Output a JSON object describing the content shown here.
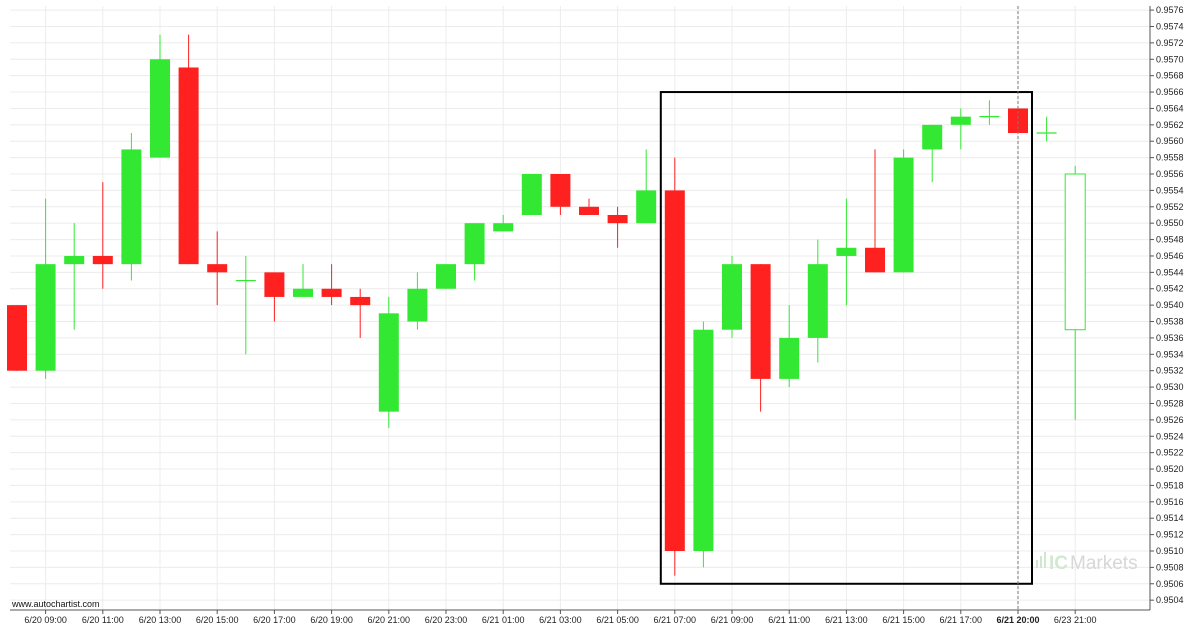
{
  "chart_data": {
    "type": "candlestick",
    "title": "",
    "xlabel": "",
    "ylabel": "",
    "grid": true,
    "ylim": [
      0.9503,
      0.9577
    ],
    "y_ticks": [
      "0.9504",
      "0.9506",
      "0.9508",
      "0.9510",
      "0.9512",
      "0.9514",
      "0.9516",
      "0.9518",
      "0.9520",
      "0.9522",
      "0.9524",
      "0.9526",
      "0.9528",
      "0.9530",
      "0.9532",
      "0.9534",
      "0.9536",
      "0.9538",
      "0.9540",
      "0.9542",
      "0.9544",
      "0.9546",
      "0.9548",
      "0.9550",
      "0.9552",
      "0.9554",
      "0.9556",
      "0.9558",
      "0.9560",
      "0.9562",
      "0.9564",
      "0.9566",
      "0.9568",
      "0.9570",
      "0.9572",
      "0.9574",
      "0.9576"
    ],
    "x_tick_labels": [
      {
        "label": "6/20 09:00",
        "index": 1
      },
      {
        "label": "6/20 11:00",
        "index": 3
      },
      {
        "label": "6/20 13:00",
        "index": 5
      },
      {
        "label": "6/20 15:00",
        "index": 7
      },
      {
        "label": "6/20 17:00",
        "index": 9
      },
      {
        "label": "6/20 19:00",
        "index": 11
      },
      {
        "label": "6/20 21:00",
        "index": 13
      },
      {
        "label": "6/20 23:00",
        "index": 15
      },
      {
        "label": "6/21 01:00",
        "index": 17
      },
      {
        "label": "6/21 03:00",
        "index": 19
      },
      {
        "label": "6/21 05:00",
        "index": 21
      },
      {
        "label": "6/21 07:00",
        "index": 23
      },
      {
        "label": "6/21 09:00",
        "index": 25
      },
      {
        "label": "6/21 11:00",
        "index": 27
      },
      {
        "label": "6/21 13:00",
        "index": 29
      },
      {
        "label": "6/21 15:00",
        "index": 31
      },
      {
        "label": "6/21 17:00",
        "index": 33
      },
      {
        "label": "6/21 20:00",
        "index": 35,
        "bold": true
      },
      {
        "label": "6/23 21:00",
        "index": 37
      }
    ],
    "candles": [
      {
        "o": 0.954,
        "h": 0.954,
        "l": 0.9532,
        "c": 0.9532
      },
      {
        "o": 0.9532,
        "h": 0.9553,
        "l": 0.9531,
        "c": 0.9545
      },
      {
        "o": 0.9545,
        "h": 0.955,
        "l": 0.9537,
        "c": 0.9546
      },
      {
        "o": 0.9546,
        "h": 0.9555,
        "l": 0.9542,
        "c": 0.9545
      },
      {
        "o": 0.9545,
        "h": 0.9561,
        "l": 0.9543,
        "c": 0.9559
      },
      {
        "o": 0.9558,
        "h": 0.9573,
        "l": 0.9558,
        "c": 0.957
      },
      {
        "o": 0.9569,
        "h": 0.9573,
        "l": 0.9545,
        "c": 0.9545
      },
      {
        "o": 0.9545,
        "h": 0.9549,
        "l": 0.954,
        "c": 0.9544
      },
      {
        "o": 0.9543,
        "h": 0.9546,
        "l": 0.9534,
        "c": 0.9543
      },
      {
        "o": 0.9544,
        "h": 0.9544,
        "l": 0.9538,
        "c": 0.9541
      },
      {
        "o": 0.9541,
        "h": 0.9545,
        "l": 0.9541,
        "c": 0.9542
      },
      {
        "o": 0.9542,
        "h": 0.9545,
        "l": 0.954,
        "c": 0.9541
      },
      {
        "o": 0.9541,
        "h": 0.9542,
        "l": 0.9536,
        "c": 0.954
      },
      {
        "o": 0.9527,
        "h": 0.9541,
        "l": 0.9525,
        "c": 0.9539
      },
      {
        "o": 0.9538,
        "h": 0.9544,
        "l": 0.9537,
        "c": 0.9542
      },
      {
        "o": 0.9542,
        "h": 0.9545,
        "l": 0.9542,
        "c": 0.9545
      },
      {
        "o": 0.9545,
        "h": 0.955,
        "l": 0.9543,
        "c": 0.955
      },
      {
        "o": 0.9549,
        "h": 0.9551,
        "l": 0.9549,
        "c": 0.955
      },
      {
        "o": 0.9551,
        "h": 0.9556,
        "l": 0.9551,
        "c": 0.9556
      },
      {
        "o": 0.9556,
        "h": 0.9556,
        "l": 0.9551,
        "c": 0.9552
      },
      {
        "o": 0.9552,
        "h": 0.9553,
        "l": 0.9551,
        "c": 0.9551
      },
      {
        "o": 0.9551,
        "h": 0.9552,
        "l": 0.9547,
        "c": 0.955
      },
      {
        "o": 0.955,
        "h": 0.9559,
        "l": 0.955,
        "c": 0.9554
      },
      {
        "o": 0.9554,
        "h": 0.9558,
        "l": 0.9507,
        "c": 0.951
      },
      {
        "o": 0.951,
        "h": 0.9538,
        "l": 0.9508,
        "c": 0.9537
      },
      {
        "o": 0.9537,
        "h": 0.9546,
        "l": 0.9536,
        "c": 0.9545
      },
      {
        "o": 0.9545,
        "h": 0.9545,
        "l": 0.9527,
        "c": 0.9531
      },
      {
        "o": 0.9531,
        "h": 0.954,
        "l": 0.953,
        "c": 0.9536
      },
      {
        "o": 0.9536,
        "h": 0.9548,
        "l": 0.9533,
        "c": 0.9545
      },
      {
        "o": 0.9546,
        "h": 0.9553,
        "l": 0.954,
        "c": 0.9547
      },
      {
        "o": 0.9547,
        "h": 0.9559,
        "l": 0.9544,
        "c": 0.9544
      },
      {
        "o": 0.9544,
        "h": 0.9559,
        "l": 0.9544,
        "c": 0.9558
      },
      {
        "o": 0.9559,
        "h": 0.9562,
        "l": 0.9555,
        "c": 0.9562
      },
      {
        "o": 0.9562,
        "h": 0.9564,
        "l": 0.9559,
        "c": 0.9563
      },
      {
        "o": 0.9563,
        "h": 0.9565,
        "l": 0.9562,
        "c": 0.9563
      },
      {
        "o": 0.9564,
        "h": 0.9564,
        "l": 0.9561,
        "c": 0.9561
      },
      {
        "o": 0.9561,
        "h": 0.9563,
        "l": 0.956,
        "c": 0.9561
      },
      {
        "o": 0.9537,
        "h": 0.9557,
        "l": 0.9526,
        "c": 0.9556,
        "style": "outline"
      }
    ],
    "pattern_box": {
      "start_index": 23,
      "end_index": 35,
      "y_top": 0.9566,
      "y_bottom": 0.9506
    },
    "current_marker_index": 35,
    "colors": {
      "up": "#33e832",
      "down": "#ff2020",
      "grid": "#ececec",
      "box": "#000000",
      "marker": "#777777"
    }
  },
  "footer": {
    "website": "www.autochartist.com"
  },
  "brand": {
    "prefix": "IC",
    "suffix": "Markets",
    "icon": "bars-icon"
  }
}
